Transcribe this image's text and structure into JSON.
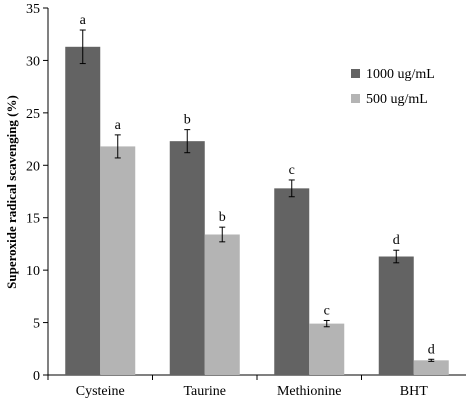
{
  "chart_data": {
    "type": "bar",
    "title": "",
    "xlabel": "",
    "ylabel": "Superoxide radical scavenging (%)",
    "ylim": [
      0,
      35
    ],
    "yticks": [
      0,
      5,
      10,
      15,
      20,
      25,
      30,
      35
    ],
    "categories": [
      "Cysteine",
      "Taurine",
      "Methionine",
      "BHT"
    ],
    "legend_position": "right",
    "grid": false,
    "series": [
      {
        "name": "1000 ug/mL",
        "color": "#636363",
        "values": [
          31.3,
          22.3,
          17.8,
          11.3
        ],
        "errors": [
          1.6,
          1.1,
          0.8,
          0.6
        ],
        "labels": [
          "a",
          "b",
          "c",
          "d"
        ]
      },
      {
        "name": "500 ug/mL",
        "color": "#b4b4b4",
        "values": [
          21.8,
          13.4,
          4.9,
          1.4
        ],
        "errors": [
          1.1,
          0.7,
          0.3,
          0.1
        ],
        "labels": [
          "a",
          "b",
          "c",
          "d"
        ]
      }
    ]
  }
}
